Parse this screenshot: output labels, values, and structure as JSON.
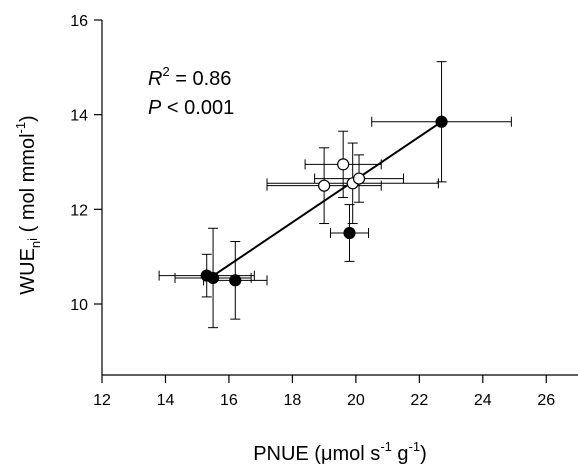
{
  "chart_data": {
    "type": "scatter",
    "xlabel": {
      "main": "PNUE (",
      "mu": "μ",
      "rest": "mol s",
      "sup1": "-1",
      "mid": " g",
      "sup2": "-1",
      "close": ")"
    },
    "ylabel": {
      "main": "WUE",
      "sub": "n",
      "sub2": "i",
      "open": " (",
      "rest": " mol mmol",
      "sup": "-1",
      "close": ")"
    },
    "xlim": [
      12,
      27
    ],
    "ylim": [
      8.5,
      16
    ],
    "xticks": [
      12,
      14,
      16,
      18,
      20,
      22,
      24,
      26
    ],
    "yticks": [
      10,
      12,
      14,
      16
    ],
    "annotations": {
      "r2_var": "R",
      "r2_sup": "2",
      "r2_text": " = 0.86",
      "p_var": "P",
      "p_text": " < 0.001"
    },
    "series": [
      {
        "marker": "filled",
        "color": "#000000",
        "points": [
          {
            "x": 15.3,
            "y": 10.6,
            "xerr": 1.5,
            "yerr": 0.45
          },
          {
            "x": 15.5,
            "y": 10.55,
            "xerr": 1.2,
            "yerr": 1.05
          },
          {
            "x": 16.2,
            "y": 10.5,
            "xerr": 1.0,
            "yerr": 0.82
          },
          {
            "x": 19.8,
            "y": 11.5,
            "xerr": 0.6,
            "yerr": 0.6
          },
          {
            "x": 22.7,
            "y": 13.85,
            "xerr": 2.2,
            "yerr": 1.27
          }
        ]
      },
      {
        "marker": "open",
        "color": "#000000",
        "points": [
          {
            "x": 19.0,
            "y": 12.5,
            "xerr": 1.8,
            "yerr": 0.8
          },
          {
            "x": 19.6,
            "y": 12.95,
            "xerr": 1.2,
            "yerr": 0.7
          },
          {
            "x": 19.9,
            "y": 12.55,
            "xerr": 2.7,
            "yerr": 0.85
          },
          {
            "x": 20.1,
            "y": 12.65,
            "xerr": 1.4,
            "yerr": 0.5
          }
        ]
      }
    ],
    "fit_line": {
      "x": [
        15.4,
        22.7
      ],
      "y": [
        10.55,
        13.85
      ]
    }
  }
}
